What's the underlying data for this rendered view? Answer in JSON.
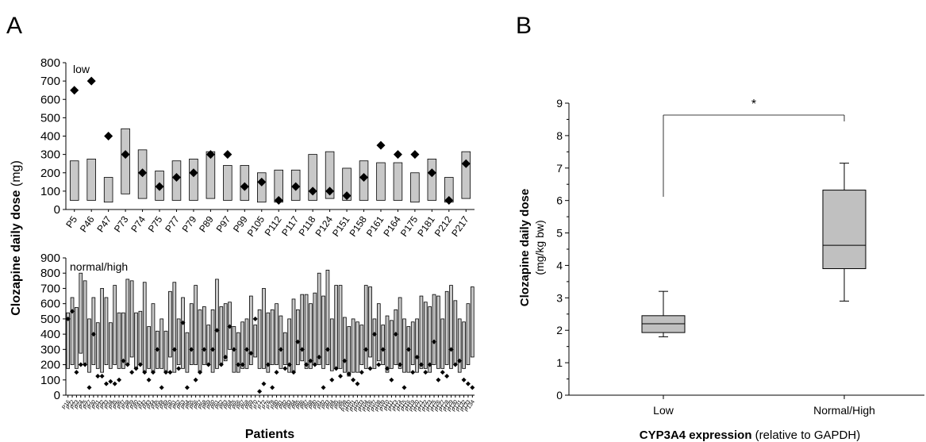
{
  "panel_labels": {
    "a": "A",
    "b": "B"
  },
  "chart_data": [
    {
      "id": "A-low",
      "type": "range-bar",
      "label": "low",
      "ylim": [
        0,
        800
      ],
      "yticks": [
        0,
        100,
        200,
        300,
        400,
        500,
        600,
        700,
        800
      ],
      "ylabel_bold": "Clozapine daily dose",
      "ylabel_unit": "(mg)",
      "categories": [
        "P5",
        "P46",
        "P47",
        "P73",
        "P74",
        "P75",
        "P77",
        "P79",
        "P89",
        "P97",
        "P99",
        "P105",
        "P112",
        "P117",
        "P118",
        "P124",
        "P151",
        "P158",
        "P161",
        "P164",
        "P175",
        "P181",
        "P212",
        "P217"
      ],
      "ranges": [
        [
          50,
          265
        ],
        [
          50,
          275
        ],
        [
          40,
          175
        ],
        [
          85,
          440
        ],
        [
          60,
          325
        ],
        [
          50,
          210
        ],
        [
          50,
          265
        ],
        [
          50,
          275
        ],
        [
          60,
          315
        ],
        [
          50,
          240
        ],
        [
          50,
          240
        ],
        [
          40,
          200
        ],
        [
          40,
          215
        ],
        [
          50,
          215
        ],
        [
          50,
          300
        ],
        [
          60,
          315
        ],
        [
          50,
          225
        ],
        [
          50,
          265
        ],
        [
          50,
          255
        ],
        [
          50,
          255
        ],
        [
          40,
          200
        ],
        [
          50,
          275
        ],
        [
          40,
          175
        ],
        [
          60,
          315
        ]
      ],
      "points": [
        650,
        700,
        400,
        300,
        200,
        125,
        175,
        200,
        300,
        300,
        125,
        150,
        50,
        125,
        100,
        100,
        75,
        175,
        350,
        300,
        300,
        200,
        50,
        250
      ]
    },
    {
      "id": "A-normalhigh",
      "type": "range-bar",
      "label": "normal/high",
      "ylim": [
        0,
        900
      ],
      "yticks": [
        0,
        100,
        200,
        300,
        400,
        500,
        600,
        700,
        800,
        900
      ],
      "xlabel": "Patients",
      "categories": [
        "P16",
        "P22",
        "P23",
        "P24",
        "P25",
        "P27",
        "P30",
        "P31",
        "P32",
        "P33",
        "P34",
        "P35",
        "P36",
        "P37",
        "P38",
        "P39",
        "P40",
        "P41",
        "P42",
        "P43",
        "P44",
        "P45",
        "P48",
        "P49",
        "P50",
        "P51",
        "P52",
        "P53",
        "P54",
        "P55",
        "P56",
        "P57",
        "P58",
        "P59",
        "P60",
        "P61",
        "P62",
        "P63",
        "P64",
        "P65",
        "P66",
        "P67",
        "P68",
        "P69",
        "P70",
        "P71",
        "P72",
        "P76",
        "P78",
        "P80",
        "P81",
        "P82",
        "P83",
        "P84",
        "P85",
        "P86",
        "P87",
        "P88",
        "P90",
        "P91",
        "P92",
        "P93",
        "P94",
        "P95",
        "P96",
        "P98",
        "P100",
        "P101",
        "P102",
        "P103",
        "P104",
        "P106",
        "P107",
        "P108",
        "P109",
        "P110",
        "P111",
        "P113",
        "P114",
        "P115",
        "P116",
        "P119",
        "P120",
        "P121",
        "P122",
        "P123",
        "P125",
        "P126",
        "P127",
        "P128",
        "P129",
        "P130",
        "P131",
        "P132",
        "P133",
        "P134"
      ],
      "ranges": [
        [
          175,
          540
        ],
        [
          200,
          640
        ],
        [
          175,
          575
        ],
        [
          275,
          800
        ],
        [
          200,
          750
        ],
        [
          150,
          500
        ],
        [
          200,
          640
        ],
        [
          175,
          475
        ],
        [
          150,
          700
        ],
        [
          200,
          640
        ],
        [
          175,
          475
        ],
        [
          200,
          720
        ],
        [
          175,
          540
        ],
        [
          175,
          540
        ],
        [
          200,
          760
        ],
        [
          250,
          750
        ],
        [
          175,
          540
        ],
        [
          200,
          550
        ],
        [
          150,
          740
        ],
        [
          175,
          450
        ],
        [
          150,
          600
        ],
        [
          175,
          420
        ],
        [
          175,
          500
        ],
        [
          150,
          420
        ],
        [
          250,
          680
        ],
        [
          150,
          740
        ],
        [
          200,
          500
        ],
        [
          175,
          640
        ],
        [
          150,
          410
        ],
        [
          200,
          600
        ],
        [
          200,
          720
        ],
        [
          150,
          560
        ],
        [
          200,
          580
        ],
        [
          200,
          460
        ],
        [
          150,
          560
        ],
        [
          175,
          760
        ],
        [
          200,
          580
        ],
        [
          225,
          600
        ],
        [
          300,
          610
        ],
        [
          150,
          450
        ],
        [
          150,
          410
        ],
        [
          175,
          480
        ],
        [
          175,
          500
        ],
        [
          200,
          650
        ],
        [
          250,
          460
        ],
        [
          175,
          560
        ],
        [
          175,
          700
        ],
        [
          150,
          540
        ],
        [
          200,
          560
        ],
        [
          200,
          600
        ],
        [
          175,
          520
        ],
        [
          200,
          410
        ],
        [
          150,
          500
        ],
        [
          150,
          630
        ],
        [
          200,
          560
        ],
        [
          225,
          660
        ],
        [
          175,
          660
        ],
        [
          175,
          600
        ],
        [
          200,
          670
        ],
        [
          200,
          800
        ],
        [
          175,
          650
        ],
        [
          200,
          820
        ],
        [
          160,
          500
        ],
        [
          175,
          720
        ],
        [
          175,
          720
        ],
        [
          150,
          510
        ],
        [
          125,
          450
        ],
        [
          150,
          500
        ],
        [
          150,
          480
        ],
        [
          200,
          460
        ],
        [
          175,
          720
        ],
        [
          250,
          710
        ],
        [
          175,
          500
        ],
        [
          225,
          600
        ],
        [
          200,
          460
        ],
        [
          150,
          520
        ],
        [
          175,
          490
        ],
        [
          200,
          560
        ],
        [
          175,
          640
        ],
        [
          150,
          500
        ],
        [
          150,
          450
        ],
        [
          200,
          480
        ],
        [
          150,
          500
        ],
        [
          175,
          650
        ],
        [
          175,
          610
        ],
        [
          150,
          580
        ],
        [
          200,
          660
        ],
        [
          175,
          650
        ],
        [
          175,
          500
        ],
        [
          200,
          680
        ],
        [
          175,
          720
        ],
        [
          200,
          620
        ],
        [
          150,
          500
        ],
        [
          175,
          480
        ],
        [
          200,
          600
        ],
        [
          250,
          710
        ]
      ],
      "points": [
        500,
        550,
        150,
        200,
        200,
        50,
        400,
        125,
        125,
        75,
        90,
        75,
        100,
        225,
        200,
        150,
        175,
        200,
        150,
        100,
        150,
        300,
        50,
        150,
        150,
        300,
        175,
        475,
        50,
        300,
        100,
        150,
        300,
        200,
        300,
        425,
        200,
        250,
        450,
        300,
        200,
        200,
        300,
        275,
        500,
        25,
        75,
        200,
        50,
        150,
        300,
        175,
        200,
        150,
        350,
        300,
        200,
        225,
        200,
        250,
        50,
        300,
        100,
        175,
        125,
        225,
        140,
        100,
        75,
        150,
        300,
        175,
        400,
        200,
        300,
        175,
        100,
        400,
        200,
        50,
        300,
        150,
        250,
        200,
        150,
        200,
        350,
        100,
        150,
        125,
        300,
        200,
        225,
        100,
        75,
        50
      ]
    },
    {
      "id": "B",
      "type": "box",
      "ylim": [
        0,
        9
      ],
      "yticks": [
        0,
        1,
        2,
        3,
        4,
        5,
        6,
        7,
        8,
        9
      ],
      "ylabel_bold": "Clozapine daily dose",
      "ylabel_unit": "(mg/kg bw)",
      "xlabel_bold": "CYP3A4 expression",
      "xlabel_rest": "(relative to GAPDH)",
      "categories": [
        "Low",
        "Normal/High"
      ],
      "boxes": [
        {
          "min": 1.8,
          "q1": 1.93,
          "median": 2.2,
          "q3": 2.45,
          "max": 3.2
        },
        {
          "min": 2.9,
          "q1": 3.9,
          "median": 4.62,
          "q3": 6.32,
          "max": 7.15
        }
      ],
      "significance": "*",
      "colors": {
        "box": "#c0c0c0",
        "bar": "#c8c8c8"
      }
    }
  ]
}
